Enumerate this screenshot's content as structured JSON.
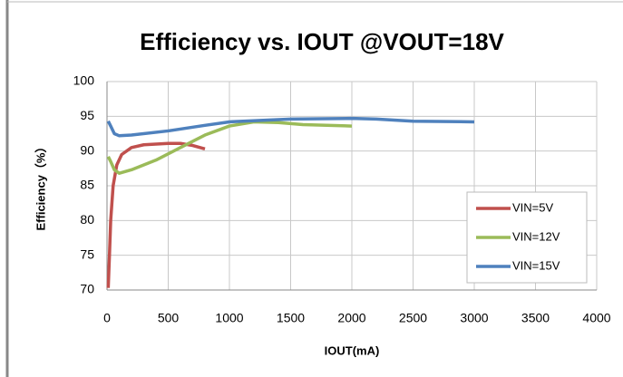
{
  "chart_data": {
    "type": "line",
    "title": "Efficiency vs. IOUT @VOUT=18V",
    "x_label": "IOUT(mA)",
    "y_label": "Efficiency（%）",
    "xlim": [
      0,
      4000
    ],
    "xticks": [
      0,
      500,
      1000,
      1500,
      2000,
      2500,
      3000,
      3500,
      4000
    ],
    "ylim": [
      70,
      100
    ],
    "yticks": [
      70,
      75,
      80,
      85,
      90,
      95,
      100
    ],
    "grid": true,
    "legend": "right",
    "series": [
      {
        "name": "VIN=5V",
        "color": "#c0504d",
        "x": [
          10,
          20,
          30,
          50,
          80,
          120,
          200,
          300,
          400,
          500,
          600,
          700,
          800
        ],
        "values": [
          70.3,
          75,
          80,
          85,
          88,
          89.5,
          90.5,
          90.9,
          91.0,
          91.1,
          91.1,
          90.8,
          90.3
        ]
      },
      {
        "name": "VIN=12V",
        "color": "#9bbb59",
        "x": [
          10,
          30,
          60,
          100,
          200,
          400,
          600,
          800,
          1000,
          1200,
          1400,
          1600,
          2000
        ],
        "values": [
          89.2,
          88.5,
          87.3,
          86.8,
          87.3,
          88.7,
          90.5,
          92.3,
          93.6,
          94.2,
          94.1,
          93.8,
          93.6
        ]
      },
      {
        "name": "VIN=15V",
        "color": "#4f81bd",
        "x": [
          10,
          30,
          60,
          100,
          200,
          500,
          800,
          1000,
          1500,
          2000,
          2200,
          2500,
          3000
        ],
        "values": [
          94.3,
          93.6,
          92.5,
          92.2,
          92.3,
          92.9,
          93.7,
          94.2,
          94.6,
          94.7,
          94.6,
          94.3,
          94.2
        ]
      }
    ]
  }
}
